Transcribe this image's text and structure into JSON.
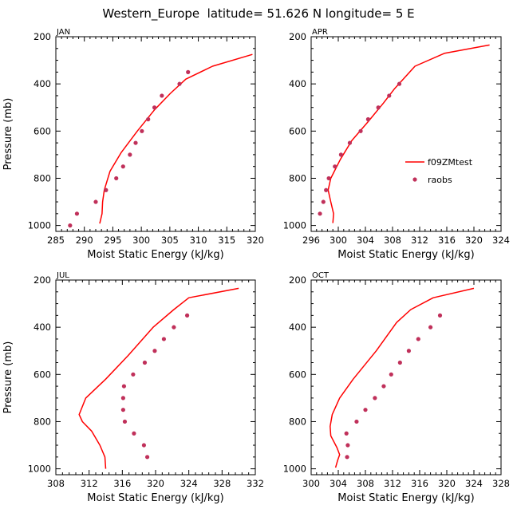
{
  "figure": {
    "title": "Western_Europe  latitude= 51.626 N longitude= 5 E"
  },
  "colors": {
    "model_line": "#ff0000",
    "obs_marker": "#c0305a",
    "axis": "#000000"
  },
  "legend": {
    "entries": [
      {
        "name": "f09ZMtest",
        "style": "line"
      },
      {
        "name": "raobs",
        "style": "marker"
      }
    ],
    "panel": 1,
    "placement": "right-middle"
  },
  "chart_data": [
    {
      "type": "line",
      "panel_label": "JAN",
      "xlabel": "Moist Static Energy (kJ/kg)",
      "ylabel": "Pressure (mb)",
      "xlim": [
        285,
        320
      ],
      "ylim": [
        1025,
        200
      ],
      "x_ticks": [
        285,
        290,
        295,
        300,
        305,
        310,
        315,
        320
      ],
      "y_ticks": [
        200,
        400,
        600,
        800,
        1000
      ],
      "series": [
        {
          "name": "f09ZMtest",
          "kind": "line",
          "x": [
            292.7,
            293.1,
            293.2,
            293.5,
            294.5,
            296.5,
            299.3,
            302.3,
            305.1,
            307.8,
            312.5,
            319.5
          ],
          "y": [
            992,
            950,
            900,
            850,
            770,
            690,
            600,
            510,
            440,
            380,
            325,
            275
          ]
        },
        {
          "name": "raobs",
          "kind": "scatter",
          "x": [
            287.5,
            288.7,
            292.0,
            293.8,
            295.6,
            296.8,
            298.0,
            299.0,
            300.1,
            301.2,
            302.3,
            303.6,
            306.7,
            308.2
          ],
          "y": [
            1000,
            950,
            900,
            850,
            800,
            750,
            700,
            650,
            600,
            550,
            500,
            450,
            400,
            350
          ]
        }
      ]
    },
    {
      "type": "line",
      "panel_label": "APR",
      "xlabel": "Moist Static Energy (kJ/kg)",
      "ylabel": "",
      "xlim": [
        296,
        324
      ],
      "ylim": [
        1025,
        200
      ],
      "x_ticks": [
        296,
        300,
        304,
        308,
        312,
        316,
        320,
        324
      ],
      "y_ticks": [
        200,
        400,
        600,
        800,
        1000
      ],
      "series": [
        {
          "name": "f09ZMtest",
          "kind": "line",
          "x": [
            299.2,
            299.3,
            298.9,
            298.5,
            298.9,
            300.3,
            302.0,
            304.4,
            306.7,
            308.3,
            311.3,
            315.7,
            322.3
          ],
          "y": [
            990,
            950,
            900,
            850,
            800,
            720,
            640,
            560,
            480,
            420,
            325,
            270,
            235
          ]
        },
        {
          "name": "raobs",
          "kind": "scatter",
          "x": [
            297.3,
            297.8,
            298.2,
            298.6,
            299.5,
            300.4,
            301.7,
            303.3,
            304.4,
            305.9,
            307.5,
            309.0
          ],
          "y": [
            950,
            900,
            850,
            800,
            750,
            700,
            650,
            600,
            550,
            500,
            450,
            400
          ]
        }
      ]
    },
    {
      "type": "line",
      "panel_label": "JUL",
      "xlabel": "Moist Static Energy (kJ/kg)",
      "ylabel": "Pressure (mb)",
      "xlim": [
        308,
        332
      ],
      "ylim": [
        1025,
        200
      ],
      "x_ticks": [
        308,
        312,
        316,
        320,
        324,
        328,
        332
      ],
      "y_ticks": [
        200,
        400,
        600,
        800,
        1000
      ],
      "series": [
        {
          "name": "f09ZMtest",
          "kind": "line",
          "x": [
            314.0,
            313.9,
            313.3,
            312.3,
            311.2,
            310.8,
            311.6,
            314.0,
            316.7,
            319.7,
            322.2,
            324.0,
            330.0
          ],
          "y": [
            1000,
            950,
            900,
            840,
            800,
            770,
            700,
            620,
            520,
            400,
            325,
            275,
            235
          ]
        },
        {
          "name": "raobs",
          "kind": "scatter",
          "x": [
            319.0,
            318.6,
            317.4,
            316.3,
            316.1,
            316.1,
            316.2,
            317.3,
            318.7,
            319.9,
            321.0,
            322.2,
            323.8
          ],
          "y": [
            950,
            900,
            850,
            800,
            750,
            700,
            650,
            600,
            550,
            500,
            450,
            400,
            350
          ]
        }
      ]
    },
    {
      "type": "line",
      "panel_label": "OCT",
      "xlabel": "Moist Static Energy (kJ/kg)",
      "ylabel": "",
      "xlim": [
        300,
        328
      ],
      "ylim": [
        1025,
        200
      ],
      "x_ticks": [
        300,
        304,
        308,
        312,
        316,
        320,
        324,
        328
      ],
      "y_ticks": [
        200,
        400,
        600,
        800,
        1000
      ],
      "series": [
        {
          "name": "f09ZMtest",
          "kind": "line",
          "x": [
            303.6,
            303.9,
            304.2,
            303.8,
            302.9,
            302.8,
            303.1,
            304.2,
            306.2,
            309.6,
            312.6,
            314.7,
            318.0,
            324.0
          ],
          "y": [
            995,
            965,
            940,
            910,
            860,
            820,
            770,
            700,
            620,
            500,
            380,
            325,
            275,
            235
          ]
        },
        {
          "name": "raobs",
          "kind": "scatter",
          "x": [
            305.3,
            305.4,
            305.2,
            306.7,
            308.0,
            309.4,
            310.7,
            311.8,
            313.1,
            314.4,
            315.8,
            317.6,
            319.0
          ],
          "y": [
            950,
            900,
            850,
            800,
            750,
            700,
            650,
            600,
            550,
            500,
            450,
            400,
            350
          ]
        }
      ]
    }
  ]
}
